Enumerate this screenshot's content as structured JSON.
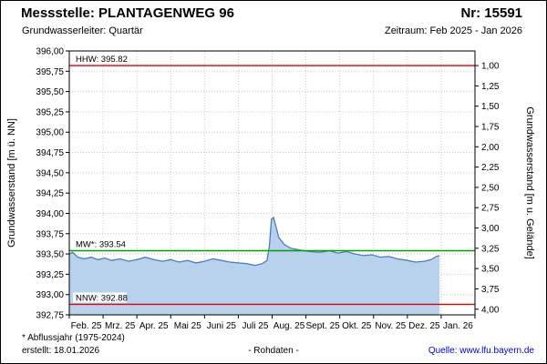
{
  "header": {
    "station": "Messstelle: PLANTAGENWEG 96",
    "number": "Nr: 15591",
    "aquifer": "Grundwasserleiter: Quartär",
    "period": "Zeitraum: Feb 2025 - Jan 2026"
  },
  "footer": {
    "note": "* Abflussjahr (1975-2024)",
    "created": "erstellt: 18.01.2026",
    "center": "- Rohdaten -",
    "source_label": "Quelle:",
    "source_link": "www.lfu.bayern.de",
    "link_color": "#0000cc"
  },
  "chart_data": {
    "type": "area",
    "grid": true,
    "left_axis": {
      "label": "Grundwasserstand [m ü. NN]",
      "min": 392.75,
      "max": 396.0,
      "step": 0.25,
      "tick_labels": [
        "396,00",
        "395,75",
        "395,50",
        "395,25",
        "395,00",
        "394,75",
        "394,50",
        "394,25",
        "394,00",
        "393,75",
        "393,50",
        "393,25",
        "393,00",
        "392,75"
      ]
    },
    "right_axis": {
      "label": "Grundwasserstand [m u. Gelände]",
      "min": 1.0,
      "max": 4.0,
      "step": 0.25,
      "ground_elevation": 396.82,
      "tick_labels": [
        "1,00",
        "1,25",
        "1,50",
        "1,75",
        "2,00",
        "2,25",
        "2,50",
        "2,75",
        "3,00",
        "3,25",
        "3,50",
        "3,75",
        "4,00"
      ]
    },
    "x_axis": {
      "months": 12,
      "labels": [
        "Feb. 25",
        "Mrz. 25",
        "Apr. 25",
        "Mai 25",
        "Juni 25",
        "Juli 25",
        "Aug. 25",
        "Sept. 25",
        "Okt. 25",
        "Nov. 25",
        "Dez. 25",
        "Jan. 26"
      ]
    },
    "reference_lines": [
      {
        "name": "HHW",
        "label": "HHW: 395.82",
        "value": 395.82,
        "color": "#e60000"
      },
      {
        "name": "MW",
        "label": "MW*: 393.54",
        "value": 393.54,
        "color": "#00a000"
      },
      {
        "name": "NNW",
        "label": "NNW: 392.88",
        "value": 392.88,
        "color": "#e60000"
      }
    ],
    "series": [
      {
        "name": "Rohdaten",
        "color": "#4a7ebb",
        "fill": "#b8d1ec",
        "points": [
          [
            0.0,
            393.5
          ],
          [
            0.1,
            393.52
          ],
          [
            0.25,
            393.46
          ],
          [
            0.45,
            393.44
          ],
          [
            0.65,
            393.46
          ],
          [
            0.85,
            393.43
          ],
          [
            1.05,
            393.45
          ],
          [
            1.25,
            393.42
          ],
          [
            1.5,
            393.44
          ],
          [
            1.75,
            393.41
          ],
          [
            2.0,
            393.43
          ],
          [
            2.25,
            393.46
          ],
          [
            2.5,
            393.43
          ],
          [
            2.75,
            393.41
          ],
          [
            3.0,
            393.43
          ],
          [
            3.25,
            393.4
          ],
          [
            3.5,
            393.42
          ],
          [
            3.75,
            393.39
          ],
          [
            4.0,
            393.41
          ],
          [
            4.25,
            393.44
          ],
          [
            4.5,
            393.42
          ],
          [
            4.75,
            393.4
          ],
          [
            5.0,
            393.39
          ],
          [
            5.25,
            393.38
          ],
          [
            5.5,
            393.36
          ],
          [
            5.7,
            393.38
          ],
          [
            5.85,
            393.42
          ],
          [
            5.92,
            393.6
          ],
          [
            5.98,
            393.93
          ],
          [
            6.04,
            393.95
          ],
          [
            6.1,
            393.86
          ],
          [
            6.2,
            393.7
          ],
          [
            6.35,
            393.62
          ],
          [
            6.55,
            393.57
          ],
          [
            6.8,
            393.55
          ],
          [
            7.1,
            393.53
          ],
          [
            7.4,
            393.52
          ],
          [
            7.7,
            393.54
          ],
          [
            7.95,
            393.51
          ],
          [
            8.2,
            393.53
          ],
          [
            8.45,
            393.5
          ],
          [
            8.7,
            393.48
          ],
          [
            8.95,
            393.49
          ],
          [
            9.2,
            393.46
          ],
          [
            9.45,
            393.47
          ],
          [
            9.7,
            393.44
          ],
          [
            10.0,
            393.42
          ],
          [
            10.25,
            393.4
          ],
          [
            10.5,
            393.41
          ],
          [
            10.7,
            393.43
          ],
          [
            10.85,
            393.47
          ],
          [
            10.95,
            393.48
          ]
        ]
      }
    ]
  }
}
